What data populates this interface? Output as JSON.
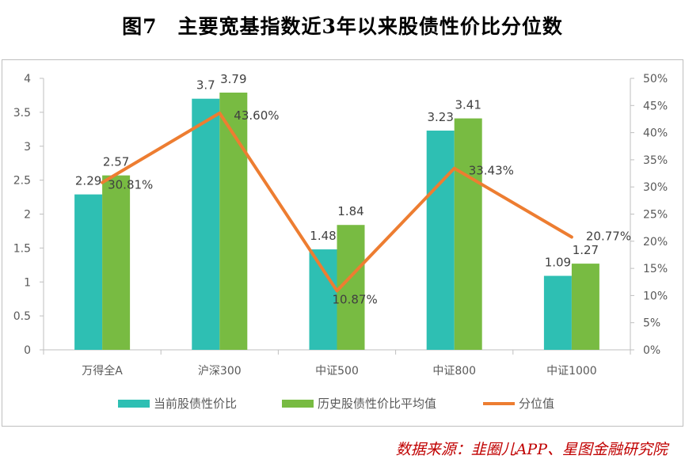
{
  "title": "图7　主要宽基指数近3年以来股债性价比分位数",
  "source": "数据来源：韭圈儿APP、星图金融研究院",
  "colors": {
    "current": "#2ebfb3",
    "history": "#78bb42",
    "percentile": "#ed7d31"
  },
  "chart_data": {
    "type": "bar",
    "categories": [
      "万得全A",
      "沪深300",
      "中证500",
      "中证800",
      "中证1000"
    ],
    "series": [
      {
        "name": "当前股债性价比",
        "type": "bar",
        "axis": "left",
        "values": [
          2.29,
          3.7,
          1.48,
          3.23,
          1.09
        ],
        "labels": [
          "2.29",
          "3.7",
          "1.48",
          "3.23",
          "1.09"
        ]
      },
      {
        "name": "历史股债性价比平均值",
        "type": "bar",
        "axis": "left",
        "values": [
          2.57,
          3.79,
          1.84,
          3.41,
          1.27
        ],
        "labels": [
          "2.57",
          "3.79",
          "1.84",
          "3.41",
          "1.27"
        ]
      },
      {
        "name": "分位值",
        "type": "line",
        "axis": "right",
        "values": [
          30.81,
          43.6,
          10.87,
          33.43,
          20.77
        ],
        "labels": [
          "30.81%",
          "43.60%",
          "10.87%",
          "33.43%",
          "20.77%"
        ]
      }
    ],
    "ylim_left": [
      0,
      4
    ],
    "yticks_left": [
      "0",
      "0.5",
      "1",
      "1.5",
      "2",
      "2.5",
      "3",
      "3.5",
      "4"
    ],
    "ylim_right": [
      0,
      50
    ],
    "yticks_right": [
      "0%",
      "5%",
      "10%",
      "15%",
      "20%",
      "25%",
      "30%",
      "35%",
      "40%",
      "45%",
      "50%"
    ],
    "grid": false,
    "legend": "bottom"
  }
}
